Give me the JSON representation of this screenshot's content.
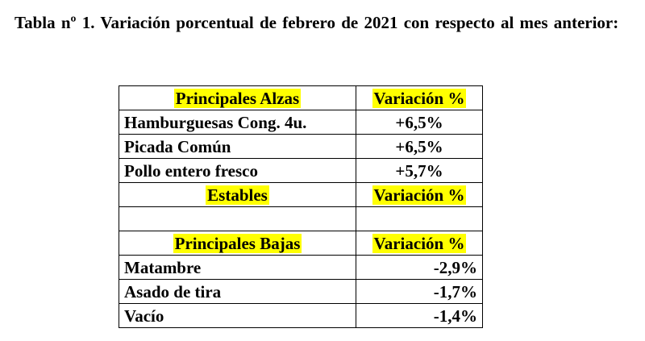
{
  "caption": "Tabla nº 1. Variación porcentual de febrero de 2021 con respecto al mes anterior:",
  "table": {
    "alzas": {
      "header": "Principales Alzas",
      "variation_header": "Variación %",
      "rows": [
        {
          "product": "Hamburguesas Cong. 4u.",
          "value": "+6,5%"
        },
        {
          "product": "Picada Común",
          "value": "+6,5%"
        },
        {
          "product": "Pollo entero fresco",
          "value": "+5,7%"
        }
      ]
    },
    "estables": {
      "header": "Estables",
      "variation_header": "Variación %"
    },
    "bajas": {
      "header": "Principales Bajas",
      "variation_header": "Variación %",
      "rows": [
        {
          "product": "Matambre",
          "value": "-2,9%"
        },
        {
          "product": "Asado de tira",
          "value": "-1,7%"
        },
        {
          "product": "Vacío",
          "value": "-1,4%"
        }
      ]
    }
  },
  "colors": {
    "highlight": "#ffff00",
    "text": "#000000",
    "border": "#000000"
  }
}
